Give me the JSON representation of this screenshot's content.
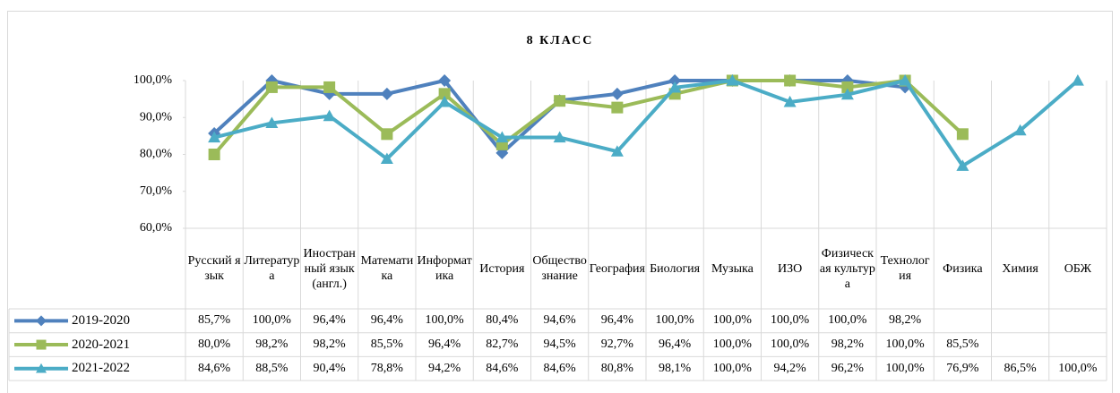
{
  "chart_data": {
    "type": "line",
    "title": "8 КЛАСС",
    "categories": [
      "Русский язык",
      "Литература",
      "Иностранный язык (англ.)",
      "Математика",
      "Информатика",
      "История",
      "Обществознание",
      "География",
      "Биология",
      "Музыка",
      "ИЗО",
      "Физическая культура",
      "Технология",
      "Физика",
      "Химия",
      "ОБЖ"
    ],
    "ylim": [
      60,
      100
    ],
    "yticks": [
      {
        "value": 60,
        "label": "60,0%"
      },
      {
        "value": 70,
        "label": "70,0%"
      },
      {
        "value": 80,
        "label": "80,0%"
      },
      {
        "value": 90,
        "label": "90,0%"
      },
      {
        "value": 100,
        "label": "100,0%"
      }
    ],
    "series": [
      {
        "name": "2019-2020",
        "color": "#4f81bd",
        "marker": "diamond",
        "values": [
          85.7,
          100,
          96.4,
          96.4,
          100,
          80.4,
          94.6,
          96.4,
          100,
          100,
          100,
          100,
          98.2,
          null,
          null,
          null
        ],
        "value_labels": [
          "85,7%",
          "100,0%",
          "96,4%",
          "96,4%",
          "100,0%",
          "80,4%",
          "94,6%",
          "96,4%",
          "100,0%",
          "100,0%",
          "100,0%",
          "100,0%",
          "98,2%",
          null,
          null,
          null
        ]
      },
      {
        "name": "2020-2021",
        "color": "#9bbb59",
        "marker": "square",
        "values": [
          80,
          98.2,
          98.2,
          85.5,
          96.4,
          82.7,
          94.5,
          92.7,
          96.4,
          100,
          100,
          98.2,
          100,
          85.5,
          null,
          null
        ],
        "value_labels": [
          "80,0%",
          "98,2%",
          "98,2%",
          "85,5%",
          "96,4%",
          "82,7%",
          "94,5%",
          "92,7%",
          "96,4%",
          "100,0%",
          "100,0%",
          "98,2%",
          "100,0%",
          "85,5%",
          null,
          null
        ]
      },
      {
        "name": "2021-2022",
        "color": "#4bacc6",
        "marker": "triangle",
        "values": [
          84.6,
          88.5,
          90.4,
          78.8,
          94.2,
          84.6,
          84.6,
          80.8,
          98.1,
          100,
          94.2,
          96.2,
          100,
          76.9,
          86.5,
          100
        ],
        "value_labels": [
          "84,6%",
          "88,5%",
          "90,4%",
          "78,8%",
          "94,2%",
          "84,6%",
          "84,6%",
          "80,8%",
          "98,1%",
          "100,0%",
          "94,2%",
          "96,2%",
          "100,0%",
          "76,9%",
          "86,5%",
          "100,0%"
        ]
      }
    ]
  }
}
